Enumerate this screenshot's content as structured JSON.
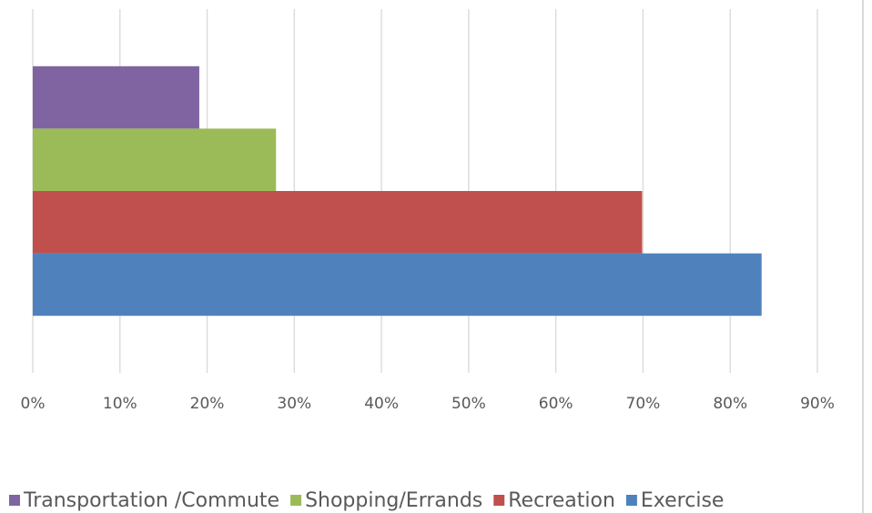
{
  "chart_data": {
    "type": "bar",
    "orientation": "horizontal",
    "categories": [
      null
    ],
    "series": [
      {
        "name": "Transportation /Commute",
        "color": "#8064a2",
        "values": [
          19.1
        ]
      },
      {
        "name": "Shopping/Errands",
        "color": "#9bbb59",
        "values": [
          27.9
        ]
      },
      {
        "name": "Recreation",
        "color": "#c0504d",
        "values": [
          69.9
        ]
      },
      {
        "name": "Exercise",
        "color": "#4f81bd",
        "values": [
          83.6
        ]
      }
    ],
    "xlim": [
      0,
      90
    ],
    "xticks": [
      {
        "value": 0,
        "label": "0%"
      },
      {
        "value": 10,
        "label": "10%"
      },
      {
        "value": 20,
        "label": "20%"
      },
      {
        "value": 30,
        "label": "30%"
      },
      {
        "value": 40,
        "label": "40%"
      },
      {
        "value": 50,
        "label": "50%"
      },
      {
        "value": 60,
        "label": "60%"
      },
      {
        "value": 70,
        "label": "70%"
      },
      {
        "value": 80,
        "label": "80%"
      },
      {
        "value": 90,
        "label": "90%"
      }
    ],
    "grid": true,
    "legend": "bottom"
  }
}
